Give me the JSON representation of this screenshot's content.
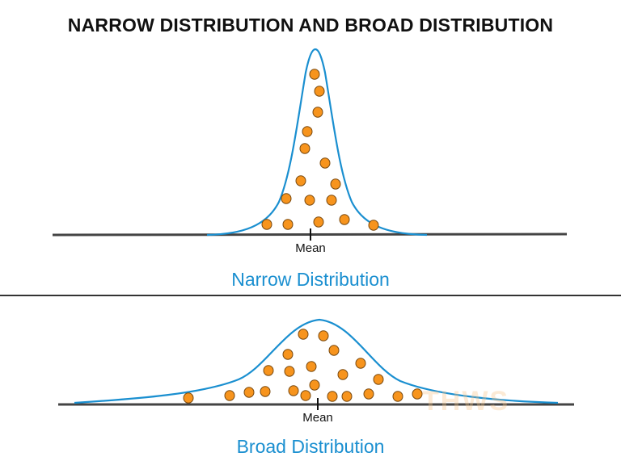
{
  "title": "NARROW DISTRIBUTION AND BROAD DISTRIBUTION",
  "narrow": {
    "label": "Narrow Distribution",
    "mean_label": "Mean"
  },
  "broad": {
    "label": "Broad Distribution",
    "mean_label": "Mean"
  },
  "watermark": "THWS",
  "colors": {
    "curve": "#1a8fd0",
    "dot_fill": "#f7941d",
    "dot_stroke": "#7a4a10",
    "axis": "#444444",
    "label": "#1a8fd0"
  }
}
